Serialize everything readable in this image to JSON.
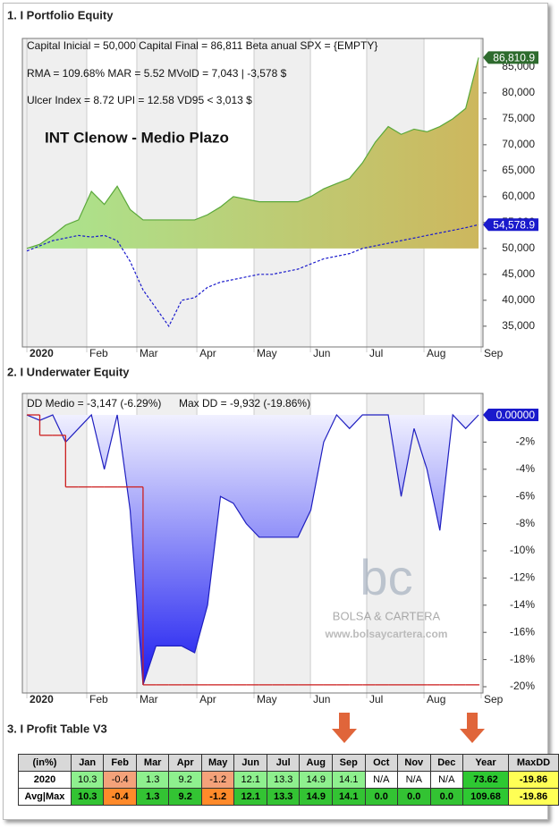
{
  "chart_data": [
    {
      "type": "area",
      "title": "1. I Portfolio Equity",
      "annotations": [
        "Capital Inicial = 50,000   Capital Final = 86,811   Beta anual SPX = {EMPTY}",
        "RMA = 109.68%   MAR = 5.52   MVolD = 7,043 | -3,578 $",
        "Ulcer Index = 8.72   UPI = 12.58   VD95 < 3,013 $",
        "INT Clenow - Medio Plazo"
      ],
      "x": [
        0,
        1,
        2,
        3,
        4,
        5,
        6,
        7,
        8,
        9,
        10,
        11,
        12,
        13,
        14,
        15,
        16,
        17,
        18,
        19,
        20,
        21,
        22,
        23,
        24,
        25,
        26,
        27,
        28,
        29,
        30,
        31,
        32,
        33,
        34,
        35
      ],
      "xlim": [
        -0.35,
        35.34
      ],
      "xticks": [
        {
          "value": 0,
          "label": "2020"
        },
        {
          "value": 4.64,
          "label": "Feb"
        },
        {
          "value": 8.52,
          "label": "Mar"
        },
        {
          "value": 13.17,
          "label": "Apr"
        },
        {
          "value": 17.6,
          "label": "May"
        },
        {
          "value": 21.97,
          "label": "Jun"
        },
        {
          "value": 26.33,
          "label": "Jul"
        },
        {
          "value": 30.77,
          "label": "Aug"
        },
        {
          "value": 35.2,
          "label": "Sep"
        }
      ],
      "ylim": [
        31000,
        90500
      ],
      "yticks": [
        {
          "value": 35000,
          "label": "35,000"
        },
        {
          "value": 40000,
          "label": "40,000"
        },
        {
          "value": 45000,
          "label": "45,000"
        },
        {
          "value": 50000,
          "label": "50,000"
        },
        {
          "value": 55000,
          "label": "55,000"
        },
        {
          "value": 60000,
          "label": "60,000"
        },
        {
          "value": 65000,
          "label": "65,000"
        },
        {
          "value": 70000,
          "label": "70,000"
        },
        {
          "value": 75000,
          "label": "75,000"
        },
        {
          "value": 80000,
          "label": "80,000"
        },
        {
          "value": 85000,
          "label": "85,000"
        }
      ],
      "baseline": 50000,
      "series": [
        {
          "color": "#5aa83a",
          "fill": [
            "#a9e690",
            "#cdb75e"
          ],
          "label_color": "#2e6b2e",
          "values": [
            50000,
            50800,
            52500,
            54500,
            55500,
            61000,
            58500,
            62000,
            57500,
            55500,
            55500,
            55500,
            55500,
            55500,
            56500,
            58000,
            60000,
            59500,
            59000,
            59000,
            59000,
            59000,
            60000,
            61500,
            62500,
            63500,
            66500,
            70500,
            73500,
            72000,
            73000,
            72500,
            73500,
            75000,
            77000,
            86810.9
          ],
          "value_labels": [
            null,
            null,
            null,
            null,
            null,
            null,
            null,
            null,
            null,
            null,
            null,
            null,
            null,
            null,
            null,
            null,
            null,
            null,
            null,
            null,
            null,
            null,
            null,
            null,
            null,
            null,
            null,
            null,
            null,
            null,
            null,
            null,
            null,
            null,
            null,
            "86,810.9"
          ]
        },
        {
          "color": "#1a1acc",
          "style": "dashed",
          "label_color": "#1a1acc",
          "values": [
            49500,
            50500,
            51500,
            52000,
            52500,
            52200,
            52500,
            51500,
            47500,
            42000,
            38500,
            35000,
            40000,
            40500,
            42500,
            43500,
            44000,
            44500,
            45000,
            45000,
            45500,
            46000,
            47000,
            48000,
            48500,
            49000,
            50000,
            50500,
            51000,
            51500,
            52000,
            52500,
            53000,
            53500,
            54000,
            54578.9
          ],
          "value_labels": [
            null,
            null,
            null,
            null,
            null,
            null,
            null,
            null,
            null,
            null,
            null,
            null,
            null,
            null,
            null,
            null,
            null,
            null,
            null,
            null,
            null,
            null,
            null,
            null,
            null,
            null,
            null,
            null,
            null,
            null,
            null,
            null,
            null,
            null,
            null,
            "54,578.9"
          ]
        }
      ]
    },
    {
      "type": "area",
      "title": "2. I Underwater Equity",
      "annotations": [
        "DD Medio = -3,147 (-6.29%)",
        "Max DD = -9,932 (-19.86%)"
      ],
      "watermark": [
        "bc",
        "BOLSA & CARTERA",
        "www.bolsaycartera.com"
      ],
      "x": [
        0,
        1,
        2,
        3,
        4,
        5,
        6,
        7,
        8,
        9,
        10,
        11,
        12,
        13,
        14,
        15,
        16,
        17,
        18,
        19,
        20,
        21,
        22,
        23,
        24,
        25,
        26,
        27,
        28,
        29,
        30,
        31,
        32,
        33,
        34,
        35
      ],
      "xlim": [
        -0.35,
        35.34
      ],
      "xticks": [
        {
          "value": 0,
          "label": "2020"
        },
        {
          "value": 4.64,
          "label": "Feb"
        },
        {
          "value": 8.52,
          "label": "Mar"
        },
        {
          "value": 13.17,
          "label": "Apr"
        },
        {
          "value": 17.6,
          "label": "May"
        },
        {
          "value": 21.97,
          "label": "Jun"
        },
        {
          "value": 26.33,
          "label": "Jul"
        },
        {
          "value": 30.77,
          "label": "Aug"
        },
        {
          "value": 35.2,
          "label": "Sep"
        }
      ],
      "ylim": [
        -20.46,
        1.58
      ],
      "yticks": [
        {
          "value": -2,
          "label": "-2%"
        },
        {
          "value": -4,
          "label": "-4%"
        },
        {
          "value": -6,
          "label": "-6%"
        },
        {
          "value": -8,
          "label": "-8%"
        },
        {
          "value": -10,
          "label": "-10%"
        },
        {
          "value": -12,
          "label": "-12%"
        },
        {
          "value": -14,
          "label": "-14%"
        },
        {
          "value": -16,
          "label": "-16%"
        },
        {
          "value": -18,
          "label": "-18%"
        },
        {
          "value": -20,
          "label": "-20%"
        }
      ],
      "baseline": 0,
      "series": [
        {
          "color": "#2020c0",
          "fill": [
            "#f0f0ff",
            "#1c1cf0"
          ],
          "label_color": "#1a1acc",
          "values": [
            0,
            -0.4,
            0,
            -2,
            -1,
            0,
            -4,
            0,
            -7,
            -19.86,
            -17,
            -17,
            -17,
            -17.5,
            -14,
            -6,
            -6.5,
            -8,
            -9,
            -9,
            -9,
            -9,
            -7,
            -2,
            0,
            -1,
            0,
            0,
            0,
            -6,
            -1,
            -4,
            -8.5,
            0,
            -1,
            0
          ],
          "value_labels": [
            null,
            null,
            null,
            null,
            null,
            null,
            null,
            null,
            null,
            null,
            null,
            null,
            null,
            null,
            null,
            null,
            null,
            null,
            null,
            null,
            null,
            null,
            null,
            null,
            null,
            null,
            null,
            null,
            null,
            null,
            null,
            null,
            null,
            null,
            null,
            "0.00000"
          ]
        },
        {
          "color": "#cc2020",
          "style": "step",
          "values": [
            0,
            -1.5,
            -1.5,
            -5.3,
            -5.3,
            -5.3,
            -5.3,
            -5.3,
            -5.3,
            -19.86,
            -19.86,
            -19.86,
            -19.86,
            -19.86,
            -19.86,
            -19.86,
            -19.86,
            -19.86,
            -19.86,
            -19.86,
            -19.86,
            -19.86,
            -19.86,
            -19.86,
            -19.86,
            -19.86,
            -19.86,
            -19.86,
            -19.86,
            -19.86,
            -19.86,
            -19.86,
            -19.86,
            -19.86,
            -19.86,
            -19.86
          ]
        }
      ]
    }
  ],
  "table": {
    "title": "3. I Profit Table V3",
    "header": [
      "(in%)",
      "Jan",
      "Feb",
      "Mar",
      "Apr",
      "May",
      "Jun",
      "Jul",
      "Aug",
      "Sep",
      "Oct",
      "Nov",
      "Dec",
      "Year",
      "MaxDD"
    ],
    "rows": [
      [
        "2020",
        "10.3",
        "-0.4",
        "1.3",
        "9.2",
        "-1.2",
        "12.1",
        "13.3",
        "14.9",
        "14.1",
        "N/A",
        "N/A",
        "N/A",
        "73.62",
        "-19.86"
      ],
      [
        "Avg|Max",
        "10.3",
        "-0.4",
        "1.3",
        "9.2",
        "-1.2",
        "12.1",
        "13.3",
        "14.9",
        "14.1",
        "0.0",
        "0.0",
        "0.0",
        "109.68",
        "-19.86"
      ]
    ]
  }
}
